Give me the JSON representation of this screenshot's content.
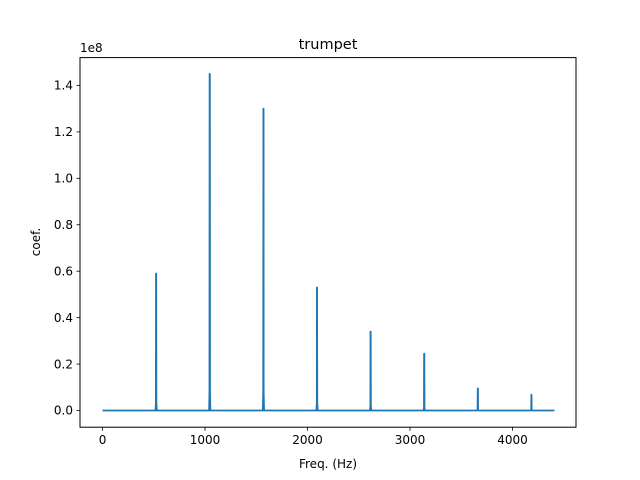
{
  "chart_data": {
    "type": "line",
    "title": "trumpet",
    "xlabel": "Freq. (Hz)",
    "ylabel": "coef.",
    "y_multiplier_label": "1e8",
    "xlim": [
      -220,
      4620
    ],
    "ylim": [
      -0.072,
      1.52
    ],
    "xticks": [
      {
        "value": 0,
        "label": "0"
      },
      {
        "value": 1000,
        "label": "1000"
      },
      {
        "value": 2000,
        "label": "2000"
      },
      {
        "value": 3000,
        "label": "3000"
      },
      {
        "value": 4000,
        "label": "4000"
      }
    ],
    "yticks": [
      {
        "value": 0.0,
        "label": "0.0"
      },
      {
        "value": 0.2,
        "label": "0.2"
      },
      {
        "value": 0.4,
        "label": "0.4"
      },
      {
        "value": 0.6,
        "label": "0.6"
      },
      {
        "value": 0.8,
        "label": "0.8"
      },
      {
        "value": 1.0,
        "label": "1.0"
      },
      {
        "value": 1.2,
        "label": "1.2"
      },
      {
        "value": 1.4,
        "label": "1.4"
      }
    ],
    "grid": false,
    "series": [
      {
        "color": "#1f77b4",
        "baseline": 0.0,
        "x_range": [
          0,
          4410
        ],
        "peaks": [
          {
            "x": 523,
            "y": 0.59
          },
          {
            "x": 1046,
            "y": 1.45
          },
          {
            "x": 1570,
            "y": 1.3
          },
          {
            "x": 2093,
            "y": 0.53
          },
          {
            "x": 2616,
            "y": 0.34
          },
          {
            "x": 3139,
            "y": 0.245
          },
          {
            "x": 3662,
            "y": 0.095
          },
          {
            "x": 4185,
            "y": 0.068
          }
        ]
      }
    ]
  }
}
